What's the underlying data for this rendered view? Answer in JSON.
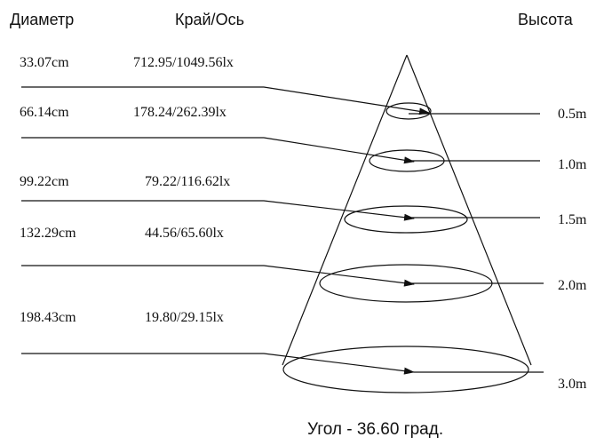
{
  "headers": {
    "diameter": "Диаметр",
    "edge_axis": "Край/Ось",
    "height": "Высота"
  },
  "rows": [
    {
      "diameter": "33.07cm",
      "lux": "712.95/1049.56lx",
      "height": "0.5m"
    },
    {
      "diameter": "66.14cm",
      "lux": "178.24/262.39lx",
      "height": "1.0m"
    },
    {
      "diameter": "99.22cm",
      "lux": "79.22/116.62lx",
      "height": "1.5m"
    },
    {
      "diameter": "132.29cm",
      "lux": "44.56/65.60lx",
      "height": "2.0m"
    },
    {
      "diameter": "198.43cm",
      "lux": "19.80/29.15lx",
      "height": "3.0m"
    }
  ],
  "footer": "Угол - 36.60 град.",
  "colors": {
    "line": "#111111",
    "text": "#111111",
    "background": "#ffffff"
  }
}
